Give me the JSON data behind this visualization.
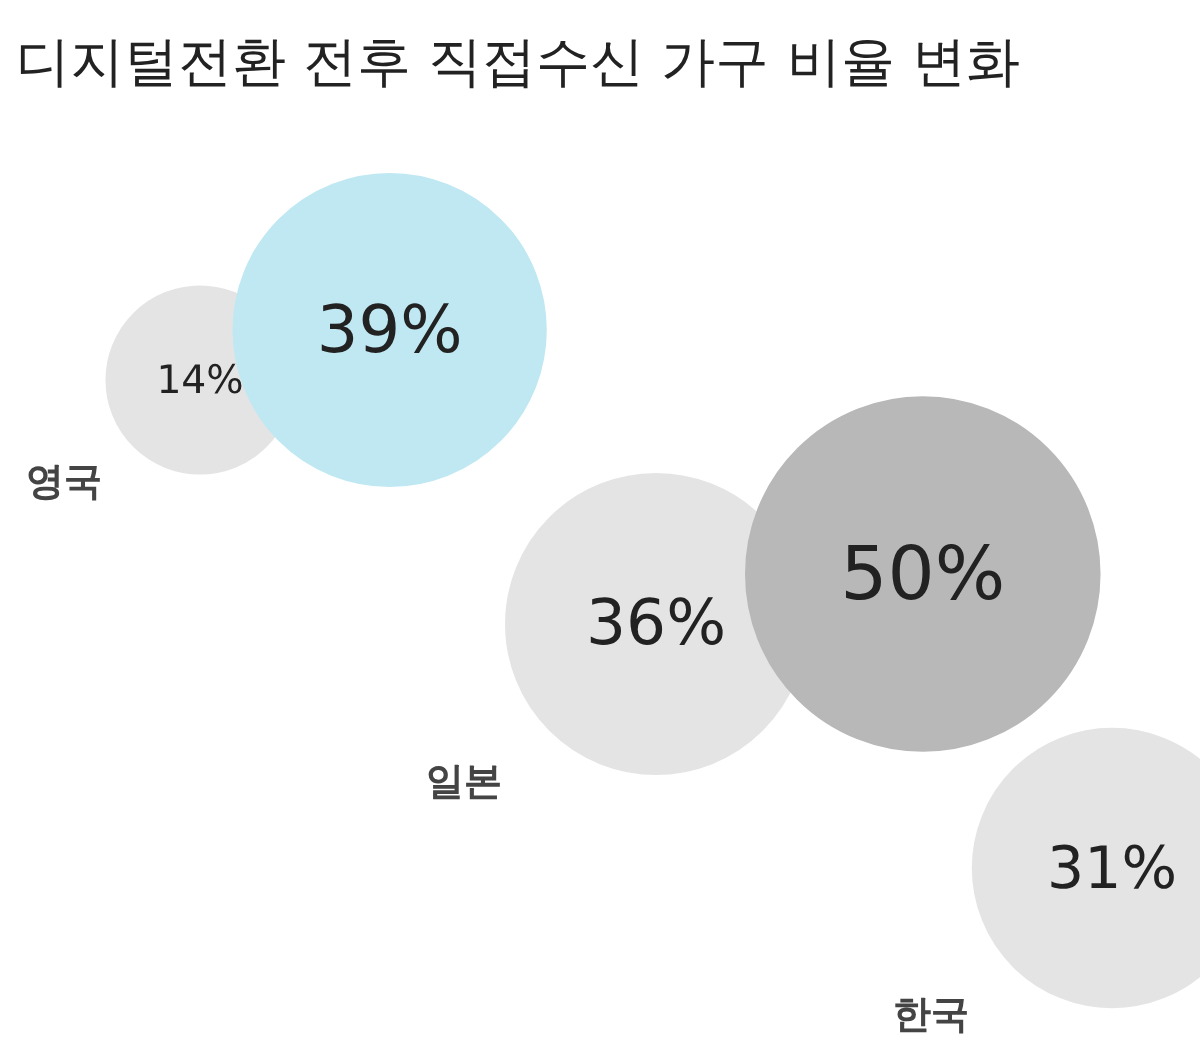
{
  "chart_data": {
    "type": "other",
    "title": "디지털전환 전후 직접수신 가구 비율 변화",
    "categories": [
      "영국",
      "일본",
      "한국"
    ],
    "series": [
      {
        "colors": [
          "#e4e4e4",
          "#e4e4e4",
          "#e4e4e4"
        ],
        "values": [
          14,
          36,
          31
        ],
        "value_labels": [
          "14%",
          "36%",
          "31%"
        ]
      },
      {
        "colors": [
          "#bfe8f2",
          "#b8b8b8",
          null
        ],
        "values": [
          39,
          50,
          null
        ],
        "value_labels": [
          "39%",
          "50%",
          null
        ]
      }
    ]
  }
}
